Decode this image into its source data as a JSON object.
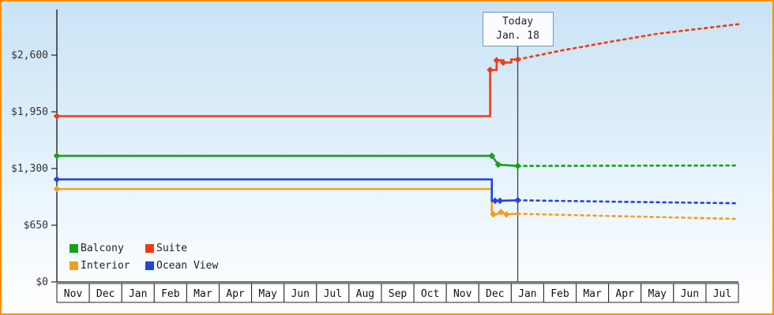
{
  "window": {
    "border_color": "#ff9000"
  },
  "chart_data": {
    "type": "line",
    "title": "",
    "x_months": [
      "Nov",
      "Dec",
      "Jan",
      "Feb",
      "Mar",
      "Apr",
      "May",
      "Jun",
      "Jul",
      "Aug",
      "Sep",
      "Oct",
      "Nov",
      "Dec",
      "Jan",
      "Feb",
      "Mar",
      "Apr",
      "May",
      "Jun",
      "Jul"
    ],
    "y_ticks": [
      {
        "value": 0,
        "label": "$0"
      },
      {
        "value": 650,
        "label": "$650"
      },
      {
        "value": 1300,
        "label": "$1,300"
      },
      {
        "value": 1950,
        "label": "$1,950"
      },
      {
        "value": 2600,
        "label": "$2,600"
      }
    ],
    "ylim": [
      0,
      3000
    ],
    "annotation": {
      "title": "Today",
      "date": "Jan. 18",
      "month_x": 14.2
    },
    "legend_position": "bottom-left",
    "series": [
      {
        "name": "Balcony",
        "color": "#18a01c",
        "solid": [
          [
            0,
            1445
          ],
          [
            13.4,
            1445
          ],
          [
            13.6,
            1345
          ],
          [
            13.75,
            1340
          ],
          [
            14.2,
            1330
          ]
        ],
        "markers": [
          [
            0,
            1445
          ],
          [
            13.4,
            1445
          ],
          [
            13.6,
            1345
          ],
          [
            14.2,
            1330
          ]
        ],
        "projection": [
          [
            14.2,
            1330
          ],
          [
            21,
            1335
          ]
        ]
      },
      {
        "name": "Suite",
        "color": "#f23b14",
        "solid": [
          [
            0,
            1900
          ],
          [
            13.35,
            1900
          ],
          [
            13.35,
            2430
          ],
          [
            13.55,
            2430
          ],
          [
            13.55,
            2540
          ],
          [
            13.75,
            2540
          ],
          [
            13.75,
            2515
          ],
          [
            14.0,
            2515
          ],
          [
            14.0,
            2550
          ],
          [
            14.2,
            2550
          ]
        ],
        "markers": [
          [
            0,
            1900
          ],
          [
            13.35,
            2430
          ],
          [
            13.55,
            2540
          ],
          [
            13.75,
            2515
          ],
          [
            14.2,
            2550
          ]
        ],
        "projection": [
          [
            14.2,
            2550
          ],
          [
            15.5,
            2650
          ],
          [
            17,
            2750
          ],
          [
            18.5,
            2845
          ],
          [
            21,
            2955
          ]
        ]
      },
      {
        "name": "Interior",
        "color": "#f0a01e",
        "solid": [
          [
            0,
            1065
          ],
          [
            13.4,
            1065
          ],
          [
            13.4,
            775
          ],
          [
            13.55,
            775
          ],
          [
            13.68,
            800
          ],
          [
            13.82,
            775
          ],
          [
            14.2,
            782
          ]
        ],
        "markers": [
          [
            0,
            1065
          ],
          [
            13.45,
            775
          ],
          [
            13.68,
            800
          ],
          [
            13.85,
            775
          ]
        ],
        "projection": [
          [
            14.2,
            782
          ],
          [
            17.5,
            752
          ],
          [
            21,
            722
          ]
        ]
      },
      {
        "name": "Ocean View",
        "color": "#2244e0",
        "solid": [
          [
            0,
            1175
          ],
          [
            13.4,
            1175
          ],
          [
            13.4,
            930
          ],
          [
            13.62,
            930
          ],
          [
            14.2,
            936
          ]
        ],
        "markers": [
          [
            0,
            1175
          ],
          [
            13.5,
            930
          ],
          [
            13.65,
            930
          ],
          [
            14.2,
            936
          ]
        ],
        "projection": [
          [
            14.2,
            936
          ],
          [
            17.5,
            918
          ],
          [
            21,
            902
          ]
        ]
      }
    ]
  }
}
